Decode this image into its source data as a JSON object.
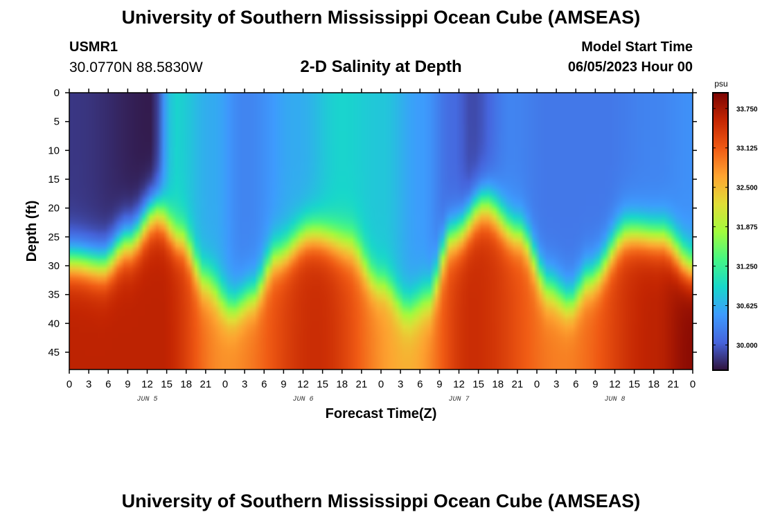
{
  "header": {
    "title": "University of Southern Mississippi Ocean Cube (AMSEAS)",
    "station_id": "USMR1",
    "coordinates": "30.0770N  88.5830W",
    "subtitle": "2-D Salinity at Depth",
    "model_start_label": "Model Start Time",
    "model_start_value": "06/05/2023 Hour 00"
  },
  "footer": {
    "title": "University of Southern Mississippi Ocean Cube (AMSEAS)"
  },
  "chart_data": {
    "type": "heatmap",
    "title": "2-D Salinity at Depth",
    "xlabel": "Forecast Time(Z)",
    "ylabel": "Depth (ft)",
    "x_range_hours": [
      0,
      96
    ],
    "y_range_ft": [
      0,
      48
    ],
    "x_tick_labels": [
      "0",
      "3",
      "6",
      "9",
      "12",
      "15",
      "18",
      "21",
      "0",
      "3",
      "6",
      "9",
      "12",
      "15",
      "18",
      "21",
      "0",
      "3",
      "6",
      "9",
      "12",
      "15",
      "18",
      "21",
      "0",
      "3",
      "6",
      "9",
      "12",
      "15",
      "18",
      "21",
      "0"
    ],
    "date_labels": [
      {
        "text": "JUN 5",
        "hour": 12
      },
      {
        "text": "JUN 6",
        "hour": 36
      },
      {
        "text": "JUN 7",
        "hour": 60
      },
      {
        "text": "JUN 8",
        "hour": 84
      }
    ],
    "y_ticks": [
      0,
      5,
      10,
      15,
      20,
      25,
      30,
      35,
      40,
      45
    ],
    "colorbar": {
      "unit": "psu",
      "min": 29.6,
      "max": 34.0,
      "tick_labels": [
        "33.750",
        "33.125",
        "32.500",
        "31.875",
        "31.250",
        "30.625",
        "30.000"
      ],
      "tick_values": [
        33.75,
        33.125,
        32.5,
        31.875,
        31.25,
        30.625,
        30.0
      ]
    },
    "halocline_depth_ft": [
      {
        "hour": 0,
        "depth": 29
      },
      {
        "hour": 5,
        "depth": 30
      },
      {
        "hour": 9,
        "depth": 26
      },
      {
        "hour": 13.5,
        "depth": 20.5
      },
      {
        "hour": 17,
        "depth": 25
      },
      {
        "hour": 21,
        "depth": 33
      },
      {
        "hour": 25,
        "depth": 37
      },
      {
        "hour": 28,
        "depth": 35
      },
      {
        "hour": 32,
        "depth": 28
      },
      {
        "hour": 37,
        "depth": 24.5
      },
      {
        "hour": 43,
        "depth": 26.5
      },
      {
        "hour": 48,
        "depth": 33
      },
      {
        "hour": 52,
        "depth": 38
      },
      {
        "hour": 55,
        "depth": 36
      },
      {
        "hour": 59,
        "depth": 25
      },
      {
        "hour": 64,
        "depth": 19.5
      },
      {
        "hour": 69,
        "depth": 24
      },
      {
        "hour": 74,
        "depth": 34
      },
      {
        "hour": 77,
        "depth": 36
      },
      {
        "hour": 80,
        "depth": 32
      },
      {
        "hour": 86,
        "depth": 24
      },
      {
        "hour": 91,
        "depth": 25
      },
      {
        "hour": 96,
        "depth": 30
      }
    ],
    "surface_salinity_psu": [
      {
        "hour": 0,
        "value": 29.8
      },
      {
        "hour": 13,
        "value": 29.65
      },
      {
        "hour": 14.5,
        "value": 30.4
      },
      {
        "hour": 16,
        "value": 30.9
      },
      {
        "hour": 22,
        "value": 30.6
      },
      {
        "hour": 27,
        "value": 30.3
      },
      {
        "hour": 35,
        "value": 30.6
      },
      {
        "hour": 42,
        "value": 30.9
      },
      {
        "hour": 48,
        "value": 30.8
      },
      {
        "hour": 54,
        "value": 30.5
      },
      {
        "hour": 59,
        "value": 30.1
      },
      {
        "hour": 62,
        "value": 29.9
      },
      {
        "hour": 68,
        "value": 30.3
      },
      {
        "hour": 74,
        "value": 30.2
      },
      {
        "hour": 82,
        "value": 30.2
      },
      {
        "hour": 90,
        "value": 30.3
      },
      {
        "hour": 96,
        "value": 30.4
      }
    ],
    "deep_salinity_psu": [
      {
        "hour": 0,
        "value": 33.6
      },
      {
        "hour": 14,
        "value": 33.6
      },
      {
        "hour": 24,
        "value": 32.8
      },
      {
        "hour": 38,
        "value": 33.5
      },
      {
        "hour": 52,
        "value": 32.6
      },
      {
        "hour": 62,
        "value": 33.5
      },
      {
        "hour": 76,
        "value": 32.9
      },
      {
        "hour": 90,
        "value": 33.6
      },
      {
        "hour": 96,
        "value": 33.9
      }
    ]
  },
  "colors": {
    "turbo_dark_blue": "#30123b",
    "turbo_blue": "#3e9bfe",
    "turbo_cyan": "#1ae4b6",
    "turbo_green": "#a2fc3c",
    "turbo_orange": "#fb8022",
    "turbo_dark_red": "#7a0403"
  }
}
